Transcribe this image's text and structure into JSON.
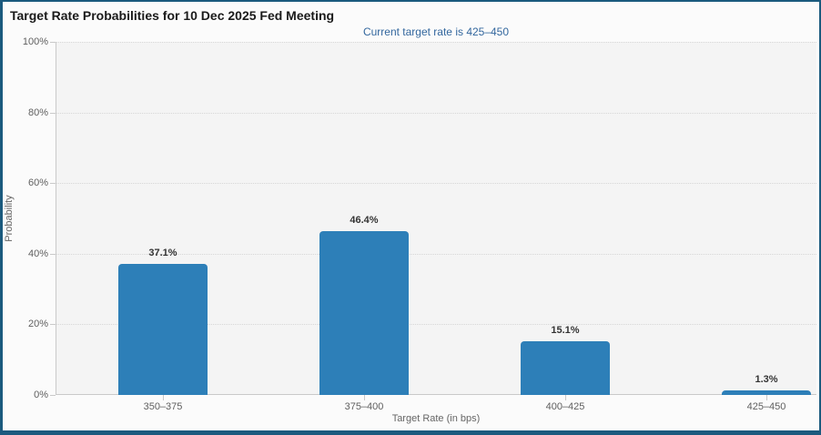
{
  "chart_data": {
    "type": "bar",
    "title": "Target Rate Probabilities for 10 Dec 2025 Fed Meeting",
    "subtitle": "Current target rate is 425–450",
    "categories": [
      "350–375",
      "375–400",
      "400–425",
      "425–450"
    ],
    "values": [
      37.1,
      46.4,
      15.1,
      1.3
    ],
    "data_labels": [
      "37.1%",
      "46.4%",
      "15.1%",
      "1.3%"
    ],
    "xlabel": "Target Rate (in bps)",
    "ylabel": "Probability",
    "ylim": [
      0,
      100
    ],
    "yticks": [
      0,
      20,
      40,
      60,
      80,
      100
    ],
    "ytick_labels": [
      "0%",
      "20%",
      "40%",
      "60%",
      "80%",
      "100%"
    ],
    "grid": "horizontal-dotted",
    "legend": "none",
    "bar_color": "#2d7fb8"
  },
  "colors": {
    "frame_border": "#1b5a7e",
    "bar": "#2d7fb8",
    "subtitle_text": "#33679e",
    "plot_background": "#f4f4f4",
    "axis_text": "#5f5f5f"
  }
}
